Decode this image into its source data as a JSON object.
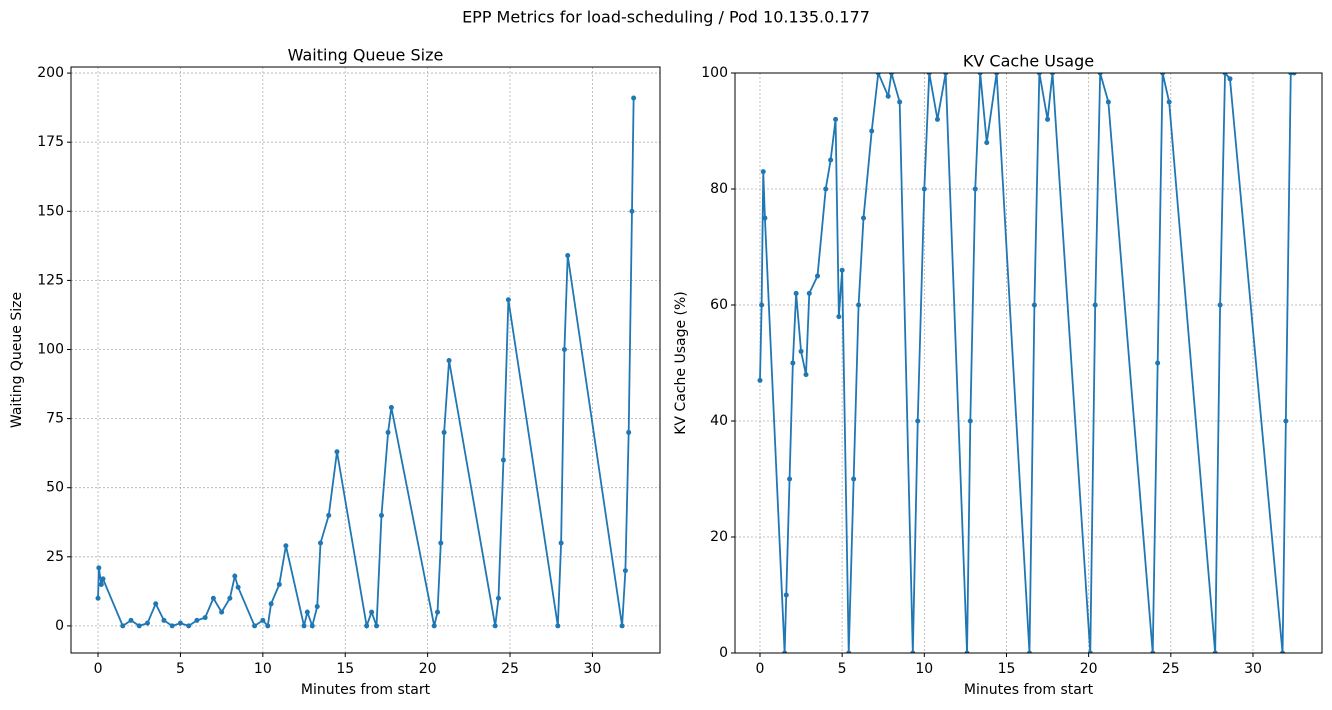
{
  "title": "EPP Metrics for load-scheduling / Pod 10.135.0.177",
  "chart_data": [
    {
      "type": "line",
      "title": "Waiting Queue Size",
      "xlabel": "Minutes from start",
      "ylabel": "Waiting Queue Size",
      "color": "#1f77b4",
      "grid": true,
      "x": [
        0,
        0.05,
        0.2,
        0.3,
        1.5,
        2,
        2.5,
        3,
        3.5,
        4,
        4.5,
        5,
        5.5,
        6,
        6.5,
        7,
        7.5,
        8,
        8.3,
        8.5,
        9.5,
        10,
        10.3,
        10.5,
        11,
        11.4,
        12.5,
        12.7,
        13,
        13.3,
        13.5,
        14,
        14.5,
        16.3,
        16.6,
        16.9,
        17.2,
        17.6,
        17.8,
        20.4,
        20.6,
        20.8,
        21,
        21.3,
        24.1,
        24.3,
        24.6,
        24.9,
        27.9,
        28.1,
        28.3,
        28.5,
        31.8,
        32,
        32.2,
        32.4,
        32.5
      ],
      "values": [
        10,
        21,
        15,
        17,
        0,
        2,
        0,
        1,
        8,
        2,
        0,
        1,
        0,
        2,
        3,
        10,
        5,
        10,
        18,
        14,
        0,
        2,
        0,
        8,
        15,
        29,
        0,
        5,
        0,
        7,
        30,
        40,
        63,
        0,
        5,
        0,
        40,
        70,
        79,
        0,
        5,
        30,
        70,
        96,
        0,
        10,
        60,
        118,
        0,
        30,
        100,
        134,
        0,
        20,
        70,
        150,
        191
      ],
      "xlim": [
        -1.64,
        34.1
      ],
      "ylim": [
        -9.8,
        202.2
      ],
      "xticks": [
        0,
        5,
        10,
        15,
        20,
        25,
        30
      ],
      "yticks": [
        0,
        25,
        50,
        75,
        100,
        125,
        150,
        175,
        200
      ]
    },
    {
      "type": "line",
      "title": "KV Cache Usage",
      "xlabel": "Minutes from start",
      "ylabel": "KV Cache Usage (%)",
      "color": "#1f77b4",
      "grid": true,
      "x": [
        0,
        0.1,
        0.2,
        0.3,
        1.5,
        1.6,
        1.8,
        2,
        2.2,
        2.5,
        2.8,
        3,
        3.5,
        4,
        4.3,
        4.6,
        4.8,
        5,
        5.4,
        5.7,
        6,
        6.3,
        6.8,
        7.2,
        7.8,
        8,
        8.5,
        9.3,
        9.6,
        10,
        10.3,
        10.8,
        11.3,
        12.6,
        12.8,
        13.1,
        13.4,
        13.8,
        14.4,
        16.4,
        16.7,
        17,
        17.5,
        17.8,
        20.1,
        20.4,
        20.7,
        21.2,
        23.9,
        24.2,
        24.5,
        24.9,
        27.7,
        28,
        28.3,
        28.6,
        31.8,
        32,
        32.3,
        32.5
      ],
      "values": [
        47,
        60,
        83,
        75,
        0,
        10,
        30,
        50,
        62,
        52,
        48,
        62,
        65,
        80,
        85,
        92,
        58,
        66,
        0,
        30,
        60,
        75,
        90,
        100,
        96,
        100,
        95,
        0,
        40,
        80,
        100,
        92,
        100,
        0,
        40,
        80,
        100,
        88,
        100,
        0,
        60,
        100,
        92,
        100,
        0,
        60,
        100,
        95,
        0,
        50,
        100,
        95,
        0,
        60,
        100,
        99,
        0,
        40,
        100,
        100
      ],
      "xlim": [
        -1.52,
        34.2
      ],
      "ylim": [
        0,
        100
      ],
      "xticks": [
        0,
        5,
        10,
        15,
        20,
        25,
        30
      ],
      "yticks": [
        0,
        20,
        40,
        60,
        80,
        100
      ]
    }
  ]
}
